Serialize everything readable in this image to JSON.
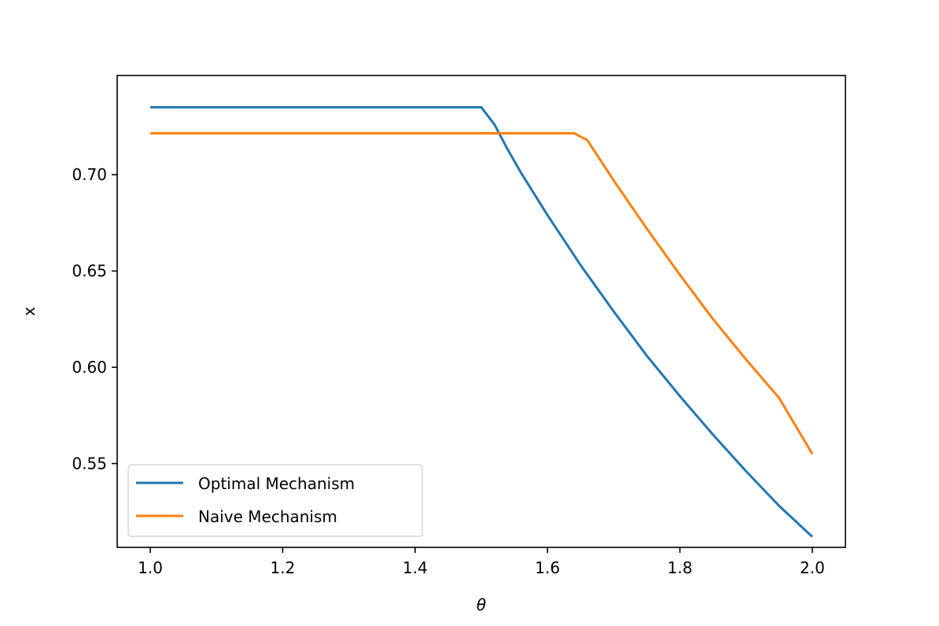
{
  "chart_data": {
    "type": "line",
    "title": "",
    "xlabel": "θ",
    "ylabel": "x",
    "xlim": [
      0.95,
      2.05
    ],
    "ylim": [
      0.5065,
      0.7515
    ],
    "xticks": [
      1.0,
      1.2,
      1.4,
      1.6,
      1.8,
      2.0
    ],
    "xtick_labels": [
      "1.0",
      "1.2",
      "1.4",
      "1.6",
      "1.8",
      "2.0"
    ],
    "yticks": [
      0.55,
      0.6,
      0.65,
      0.7
    ],
    "ytick_labels": [
      "0.55",
      "0.60",
      "0.65",
      "0.70"
    ],
    "grid": false,
    "legend_position": "lower-left",
    "series": [
      {
        "name": "Optimal Mechanism",
        "color": "#1f77b4",
        "x": [
          1.0,
          1.1,
          1.2,
          1.3,
          1.4,
          1.5,
          1.52,
          1.54,
          1.56,
          1.6,
          1.65,
          1.7,
          1.75,
          1.8,
          1.85,
          1.9,
          1.95,
          2.0
        ],
        "y": [
          0.735,
          0.735,
          0.735,
          0.735,
          0.735,
          0.735,
          0.726,
          0.713,
          0.701,
          0.679,
          0.653,
          0.629,
          0.606,
          0.585,
          0.565,
          0.546,
          0.528,
          0.512
        ]
      },
      {
        "name": "Naive Mechanism",
        "color": "#ff7f0e",
        "x": [
          1.0,
          1.1,
          1.2,
          1.3,
          1.4,
          1.5,
          1.6,
          1.64,
          1.66,
          1.7,
          1.75,
          1.8,
          1.85,
          1.9,
          1.95,
          2.0
        ],
        "y": [
          0.7215,
          0.7215,
          0.7215,
          0.7215,
          0.7215,
          0.7215,
          0.7215,
          0.7215,
          0.718,
          0.697,
          0.672,
          0.648,
          0.625,
          0.604,
          0.584,
          0.555
        ]
      }
    ]
  }
}
